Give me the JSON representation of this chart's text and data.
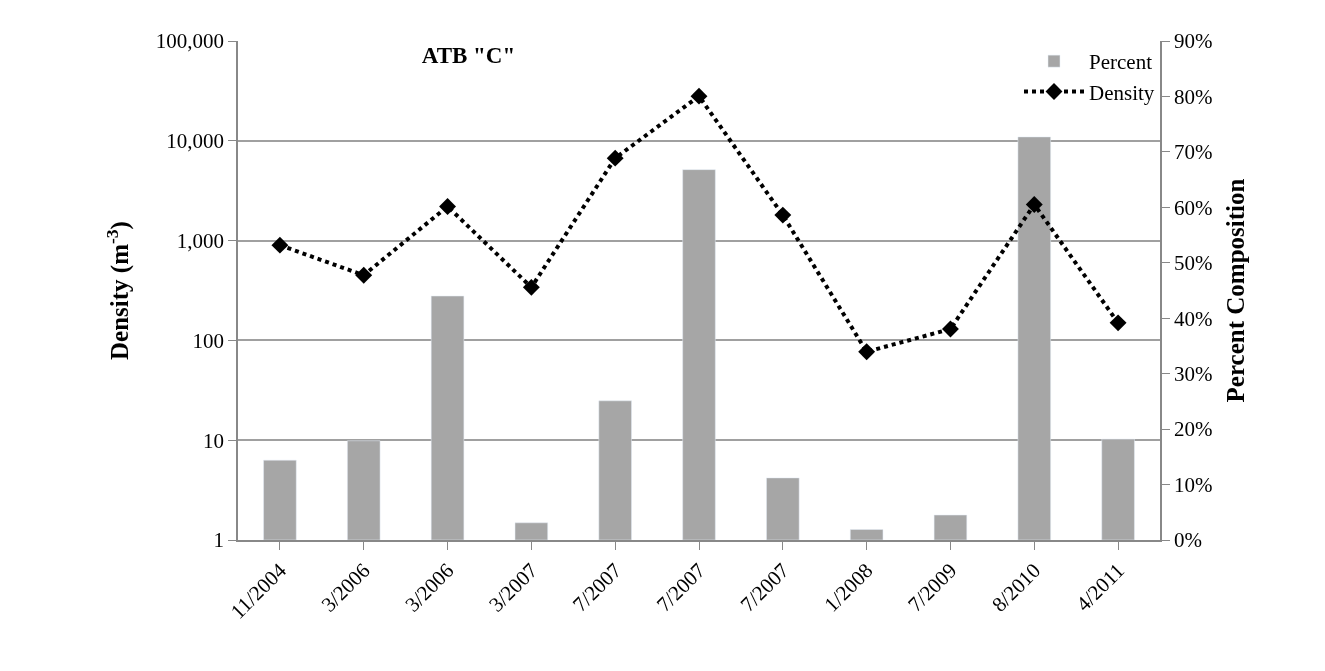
{
  "chart_data": {
    "type": "bar",
    "title": "ATB \"C\"",
    "categories": [
      "11/2004",
      "3/2006",
      "3/2006",
      "3/2007",
      "7/2007",
      "7/2007",
      "7/2007",
      "1/2008",
      "7/2009",
      "8/2010",
      "4/2011"
    ],
    "series": [
      {
        "name": "Percent",
        "axis": "y2",
        "color": "#a6a6a6",
        "values": [
          14.4,
          17.9,
          44.0,
          3.1,
          25.1,
          66.8,
          11.2,
          1.9,
          4.5,
          72.7,
          18.2
        ]
      },
      {
        "name": "Density",
        "type": "line",
        "color": "#000000",
        "marker": "diamond",
        "line_style": "dotted",
        "values": [
          900,
          450,
          2200,
          340,
          6700,
          28000,
          1800,
          77,
          130,
          2300,
          150
        ]
      }
    ],
    "ylabel": "Density (m$^{-3}$)",
    "y2label": "Percent Composition",
    "log": "y",
    "ylim": [
      1,
      100000
    ],
    "yticks": [
      1,
      10,
      100,
      {
        "value": 1000,
        "label": "1,000"
      },
      {
        "value": 10000,
        "label": "10,000"
      },
      {
        "value": 100000,
        "label": "100,000"
      }
    ],
    "y2lim": [
      0,
      90
    ],
    "y2ticks": [
      {
        "value": 0,
        "label": "0%"
      },
      {
        "value": 10,
        "label": "10%"
      },
      {
        "value": 20,
        "label": "20%"
      },
      {
        "value": 30,
        "label": "30%"
      },
      {
        "value": 40,
        "label": "40%"
      },
      {
        "value": 50,
        "label": "50%"
      },
      {
        "value": 60,
        "label": "60%"
      },
      {
        "value": 70,
        "label": "70%"
      },
      {
        "value": 80,
        "label": "80%"
      },
      {
        "value": 90,
        "label": "90%"
      }
    ],
    "grid": "y",
    "legend": "top right"
  }
}
